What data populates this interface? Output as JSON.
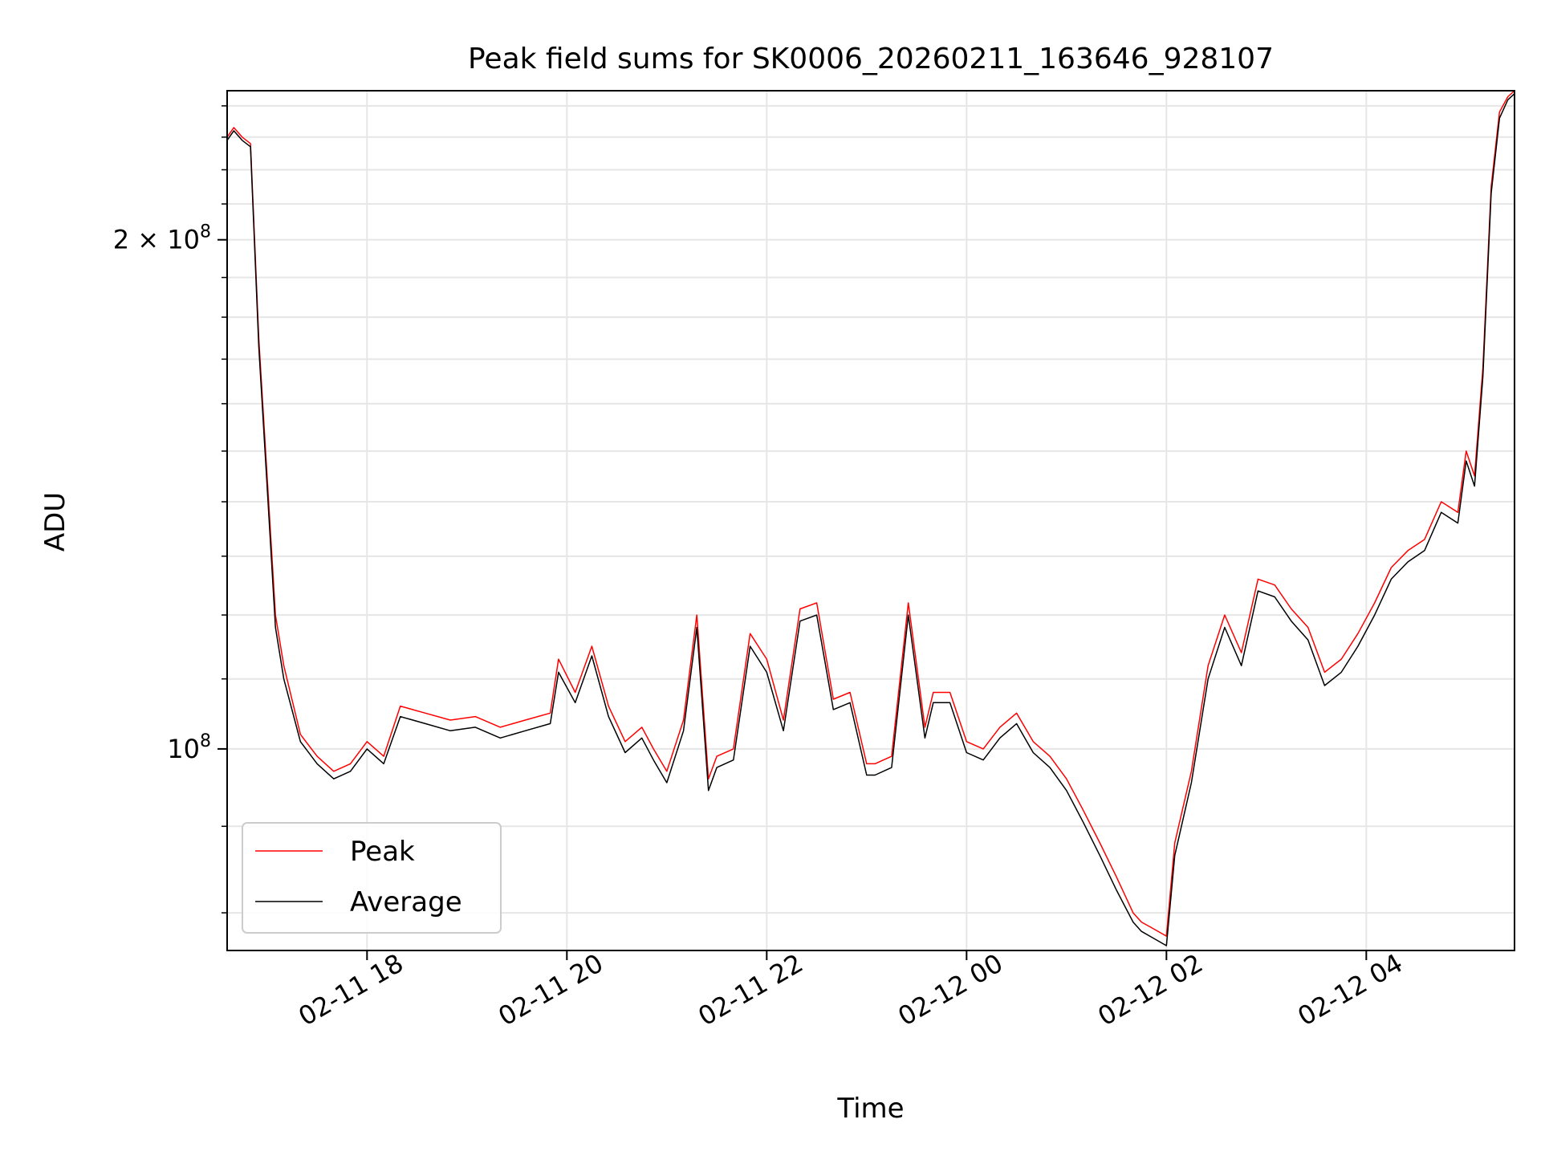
{
  "chart_data": {
    "type": "line",
    "title": "Peak field sums for SK0006_20260211_163646_928107",
    "xlabel": "Time",
    "ylabel": "ADU",
    "yscale": "log",
    "grid": true,
    "legend_position": "lower-left",
    "xlim": [
      "2026-02-11 16:36",
      "2026-02-12 05:29"
    ],
    "ylim": [
      76000000,
      245000000
    ],
    "x_ticks": [
      "02-11 18",
      "02-11 20",
      "02-11 22",
      "02-12 00",
      "02-12 02",
      "02-12 04"
    ],
    "y_tick_labels": [
      {
        "value": 200000000,
        "label": "2 × 10",
        "exp": "8"
      },
      {
        "value": 100000000,
        "label": "10",
        "exp": "8"
      }
    ],
    "colors": {
      "peak": "#ff0000",
      "average": "#000000"
    },
    "series": [
      {
        "name": "Peak",
        "color": "#ff0000",
        "points": [
          [
            "2026-02-11 16:36",
            230000000
          ],
          [
            "2026-02-11 16:40",
            233000000
          ],
          [
            "2026-02-11 16:45",
            230000000
          ],
          [
            "2026-02-11 16:50",
            228000000
          ],
          [
            "2026-02-11 16:55",
            175000000
          ],
          [
            "2026-02-11 17:00",
            145000000
          ],
          [
            "2026-02-11 17:05",
            120000000
          ],
          [
            "2026-02-11 17:10",
            112000000
          ],
          [
            "2026-02-11 17:20",
            102000000
          ],
          [
            "2026-02-11 17:30",
            99000000
          ],
          [
            "2026-02-11 17:40",
            97000000
          ],
          [
            "2026-02-11 17:50",
            98000000
          ],
          [
            "2026-02-11 18:00",
            101000000
          ],
          [
            "2026-02-11 18:10",
            99000000
          ],
          [
            "2026-02-11 18:20",
            106000000
          ],
          [
            "2026-02-11 18:35",
            105000000
          ],
          [
            "2026-02-11 18:50",
            104000000
          ],
          [
            "2026-02-11 19:05",
            104500000
          ],
          [
            "2026-02-11 19:20",
            103000000
          ],
          [
            "2026-02-11 19:35",
            104000000
          ],
          [
            "2026-02-11 19:50",
            105000000
          ],
          [
            "2026-02-11 19:55",
            113000000
          ],
          [
            "2026-02-11 20:05",
            108000000
          ],
          [
            "2026-02-11 20:15",
            115000000
          ],
          [
            "2026-02-11 20:25",
            106000000
          ],
          [
            "2026-02-11 20:35",
            101000000
          ],
          [
            "2026-02-11 20:45",
            103000000
          ],
          [
            "2026-02-11 20:52",
            100000000
          ],
          [
            "2026-02-11 21:00",
            97000000
          ],
          [
            "2026-02-11 21:10",
            104000000
          ],
          [
            "2026-02-11 21:18",
            120000000
          ],
          [
            "2026-02-11 21:25",
            96000000
          ],
          [
            "2026-02-11 21:30",
            99000000
          ],
          [
            "2026-02-11 21:40",
            100000000
          ],
          [
            "2026-02-11 21:50",
            117000000
          ],
          [
            "2026-02-11 22:00",
            113000000
          ],
          [
            "2026-02-11 22:10",
            104000000
          ],
          [
            "2026-02-11 22:20",
            121000000
          ],
          [
            "2026-02-11 22:30",
            122000000
          ],
          [
            "2026-02-11 22:40",
            107000000
          ],
          [
            "2026-02-11 22:50",
            108000000
          ],
          [
            "2026-02-11 23:00",
            98000000
          ],
          [
            "2026-02-11 23:05",
            98000000
          ],
          [
            "2026-02-11 23:15",
            99000000
          ],
          [
            "2026-02-11 23:25",
            122000000
          ],
          [
            "2026-02-11 23:35",
            103000000
          ],
          [
            "2026-02-11 23:40",
            108000000
          ],
          [
            "2026-02-11 23:50",
            108000000
          ],
          [
            "2026-02-12 00:00",
            101000000
          ],
          [
            "2026-02-12 00:10",
            100000000
          ],
          [
            "2026-02-12 00:20",
            103000000
          ],
          [
            "2026-02-12 00:30",
            105000000
          ],
          [
            "2026-02-12 00:40",
            101000000
          ],
          [
            "2026-02-12 00:50",
            99000000
          ],
          [
            "2026-02-12 01:00",
            96000000
          ],
          [
            "2026-02-12 01:10",
            92000000
          ],
          [
            "2026-02-12 01:20",
            88000000
          ],
          [
            "2026-02-12 01:30",
            84000000
          ],
          [
            "2026-02-12 01:40",
            80000000
          ],
          [
            "2026-02-12 01:45",
            79000000
          ],
          [
            "2026-02-12 01:50",
            78500000
          ],
          [
            "2026-02-12 02:00",
            77500000
          ],
          [
            "2026-02-12 02:05",
            88000000
          ],
          [
            "2026-02-12 02:15",
            97000000
          ],
          [
            "2026-02-12 02:25",
            112000000
          ],
          [
            "2026-02-12 02:35",
            120000000
          ],
          [
            "2026-02-12 02:45",
            114000000
          ],
          [
            "2026-02-12 02:55",
            126000000
          ],
          [
            "2026-02-12 03:05",
            125000000
          ],
          [
            "2026-02-12 03:15",
            121000000
          ],
          [
            "2026-02-12 03:25",
            118000000
          ],
          [
            "2026-02-12 03:35",
            111000000
          ],
          [
            "2026-02-12 03:45",
            113000000
          ],
          [
            "2026-02-12 03:55",
            117000000
          ],
          [
            "2026-02-12 04:05",
            122000000
          ],
          [
            "2026-02-12 04:15",
            128000000
          ],
          [
            "2026-02-12 04:25",
            131000000
          ],
          [
            "2026-02-12 04:35",
            133000000
          ],
          [
            "2026-02-12 04:45",
            140000000
          ],
          [
            "2026-02-12 04:55",
            138000000
          ],
          [
            "2026-02-12 05:00",
            150000000
          ],
          [
            "2026-02-12 05:05",
            145000000
          ],
          [
            "2026-02-12 05:10",
            168000000
          ],
          [
            "2026-02-12 05:15",
            215000000
          ],
          [
            "2026-02-12 05:20",
            238000000
          ],
          [
            "2026-02-12 05:25",
            243000000
          ],
          [
            "2026-02-12 05:29",
            245000000
          ]
        ]
      },
      {
        "name": "Average",
        "color": "#000000",
        "points": [
          [
            "2026-02-11 16:36",
            229000000
          ],
          [
            "2026-02-11 16:40",
            232000000
          ],
          [
            "2026-02-11 16:45",
            229000000
          ],
          [
            "2026-02-11 16:50",
            227000000
          ],
          [
            "2026-02-11 16:55",
            173000000
          ],
          [
            "2026-02-11 17:00",
            143000000
          ],
          [
            "2026-02-11 17:05",
            118000000
          ],
          [
            "2026-02-11 17:10",
            110000000
          ],
          [
            "2026-02-11 17:20",
            101000000
          ],
          [
            "2026-02-11 17:30",
            98000000
          ],
          [
            "2026-02-11 17:40",
            96000000
          ],
          [
            "2026-02-11 17:50",
            97000000
          ],
          [
            "2026-02-11 18:00",
            100000000
          ],
          [
            "2026-02-11 18:10",
            98000000
          ],
          [
            "2026-02-11 18:20",
            104500000
          ],
          [
            "2026-02-11 18:35",
            103500000
          ],
          [
            "2026-02-11 18:50",
            102500000
          ],
          [
            "2026-02-11 19:05",
            103000000
          ],
          [
            "2026-02-11 19:20",
            101500000
          ],
          [
            "2026-02-11 19:35",
            102500000
          ],
          [
            "2026-02-11 19:50",
            103500000
          ],
          [
            "2026-02-11 19:55",
            111000000
          ],
          [
            "2026-02-11 20:05",
            106500000
          ],
          [
            "2026-02-11 20:15",
            113500000
          ],
          [
            "2026-02-11 20:25",
            104500000
          ],
          [
            "2026-02-11 20:35",
            99500000
          ],
          [
            "2026-02-11 20:45",
            101500000
          ],
          [
            "2026-02-11 20:52",
            98500000
          ],
          [
            "2026-02-11 21:00",
            95500000
          ],
          [
            "2026-02-11 21:10",
            102500000
          ],
          [
            "2026-02-11 21:18",
            118000000
          ],
          [
            "2026-02-11 21:25",
            94500000
          ],
          [
            "2026-02-11 21:30",
            97500000
          ],
          [
            "2026-02-11 21:40",
            98500000
          ],
          [
            "2026-02-11 21:50",
            115000000
          ],
          [
            "2026-02-11 22:00",
            111000000
          ],
          [
            "2026-02-11 22:10",
            102500000
          ],
          [
            "2026-02-11 22:20",
            119000000
          ],
          [
            "2026-02-11 22:30",
            120000000
          ],
          [
            "2026-02-11 22:40",
            105500000
          ],
          [
            "2026-02-11 22:50",
            106500000
          ],
          [
            "2026-02-11 23:00",
            96500000
          ],
          [
            "2026-02-11 23:05",
            96500000
          ],
          [
            "2026-02-11 23:15",
            97500000
          ],
          [
            "2026-02-11 23:25",
            120000000
          ],
          [
            "2026-02-11 23:35",
            101500000
          ],
          [
            "2026-02-11 23:40",
            106500000
          ],
          [
            "2026-02-11 23:50",
            106500000
          ],
          [
            "2026-02-12 00:00",
            99500000
          ],
          [
            "2026-02-12 00:10",
            98500000
          ],
          [
            "2026-02-12 00:20",
            101500000
          ],
          [
            "2026-02-12 00:30",
            103500000
          ],
          [
            "2026-02-12 00:40",
            99500000
          ],
          [
            "2026-02-12 00:50",
            97500000
          ],
          [
            "2026-02-12 01:00",
            94500000
          ],
          [
            "2026-02-12 01:10",
            90500000
          ],
          [
            "2026-02-12 01:20",
            86500000
          ],
          [
            "2026-02-12 01:30",
            82500000
          ],
          [
            "2026-02-12 01:40",
            79000000
          ],
          [
            "2026-02-12 01:45",
            78000000
          ],
          [
            "2026-02-12 01:50",
            77500000
          ],
          [
            "2026-02-12 02:00",
            76500000
          ],
          [
            "2026-02-12 02:05",
            86500000
          ],
          [
            "2026-02-12 02:15",
            95500000
          ],
          [
            "2026-02-12 02:25",
            110000000
          ],
          [
            "2026-02-12 02:35",
            118000000
          ],
          [
            "2026-02-12 02:45",
            112000000
          ],
          [
            "2026-02-12 02:55",
            124000000
          ],
          [
            "2026-02-12 03:05",
            123000000
          ],
          [
            "2026-02-12 03:15",
            119000000
          ],
          [
            "2026-02-12 03:25",
            116000000
          ],
          [
            "2026-02-12 03:35",
            109000000
          ],
          [
            "2026-02-12 03:45",
            111000000
          ],
          [
            "2026-02-12 03:55",
            115000000
          ],
          [
            "2026-02-12 04:05",
            120000000
          ],
          [
            "2026-02-12 04:15",
            126000000
          ],
          [
            "2026-02-12 04:25",
            129000000
          ],
          [
            "2026-02-12 04:35",
            131000000
          ],
          [
            "2026-02-12 04:45",
            138000000
          ],
          [
            "2026-02-12 04:55",
            136000000
          ],
          [
            "2026-02-12 05:00",
            148000000
          ],
          [
            "2026-02-12 05:05",
            143000000
          ],
          [
            "2026-02-12 05:10",
            166000000
          ],
          [
            "2026-02-12 05:15",
            213000000
          ],
          [
            "2026-02-12 05:20",
            236000000
          ],
          [
            "2026-02-12 05:25",
            242000000
          ],
          [
            "2026-02-12 05:29",
            244000000
          ]
        ]
      }
    ]
  }
}
